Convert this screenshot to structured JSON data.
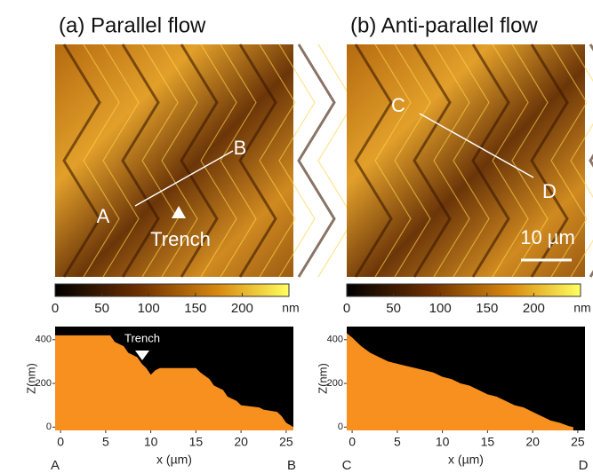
{
  "panels": [
    {
      "title": "(a) Parallel flow",
      "image_labels": [
        "A",
        "B",
        "Trench"
      ],
      "colorbar": {
        "ticks": [
          0,
          50,
          100,
          150,
          200
        ],
        "unit": "nm",
        "lim": [
          0,
          250
        ]
      },
      "profile_ends": [
        "A",
        "B"
      ]
    },
    {
      "title": "(b) Anti-parallel flow",
      "image_labels": [
        "C",
        "D",
        "10 µm"
      ],
      "colorbar": {
        "ticks": [
          0,
          50,
          100,
          150,
          200
        ],
        "unit": "nm",
        "lim": [
          0,
          250
        ]
      },
      "profile_ends": [
        "C",
        "D"
      ]
    }
  ],
  "chart_data": [
    {
      "type": "area",
      "xlabel": "x (µm)",
      "ylabel": "Z(nm)",
      "color": "#f7901e",
      "annotation": "Trench",
      "x": [
        -0.6,
        5.5,
        6,
        7,
        7.5,
        8.5,
        9,
        9.5,
        10,
        10.5,
        11,
        15,
        15.5,
        16.5,
        17,
        18,
        18.5,
        19.5,
        20,
        22,
        22.5,
        24,
        24.5,
        25,
        25.8
      ],
      "values": [
        420,
        420,
        390,
        370,
        340,
        320,
        290,
        270,
        240,
        260,
        270,
        270,
        250,
        220,
        190,
        170,
        140,
        120,
        100,
        90,
        80,
        70,
        50,
        20,
        0
      ],
      "xlim": [
        -0.6,
        25.8
      ],
      "ylim": [
        -15,
        460
      ],
      "xticks": [
        0,
        5,
        10,
        15,
        20,
        25
      ],
      "yticks": [
        0,
        200,
        400
      ]
    },
    {
      "type": "area",
      "xlabel": "x (µm)",
      "ylabel": "Z(nm)",
      "color": "#f7901e",
      "x": [
        -0.6,
        0,
        1,
        2,
        3,
        4,
        5,
        6,
        7,
        8,
        9,
        10,
        11,
        12,
        13,
        14,
        15,
        16,
        17,
        18,
        19,
        20,
        21,
        22,
        23,
        24,
        24.5
      ],
      "values": [
        430,
        410,
        370,
        340,
        320,
        300,
        290,
        280,
        270,
        260,
        250,
        230,
        220,
        200,
        190,
        170,
        150,
        140,
        120,
        100,
        90,
        70,
        50,
        30,
        20,
        5,
        0
      ],
      "xlim": [
        -0.6,
        25.8
      ],
      "ylim": [
        -15,
        460
      ],
      "xticks": [
        0,
        5,
        10,
        15,
        20,
        25
      ],
      "yticks": [
        0,
        200,
        400
      ]
    }
  ]
}
